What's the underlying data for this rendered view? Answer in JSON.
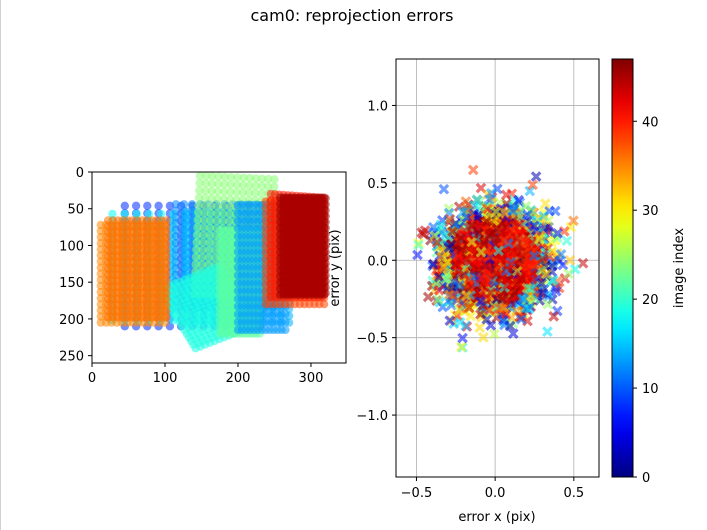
{
  "figure": {
    "title": "cam0: reprojection errors"
  },
  "chart_data": [
    {
      "type": "scatter",
      "name": "image-coverage",
      "title": "",
      "xlabel": "",
      "ylabel": "",
      "xlim": [
        0,
        348
      ],
      "ylim": [
        260,
        0
      ],
      "xticks": [
        0,
        100,
        200,
        300
      ],
      "yticks": [
        0,
        50,
        100,
        150,
        200,
        250
      ],
      "marker": "circle",
      "grid": false,
      "patches": [
        {
          "image_index": 8,
          "corners": [
            [
              45,
              46
            ],
            [
              230,
              46
            ],
            [
              230,
              210
            ],
            [
              45,
              210
            ]
          ]
        },
        {
          "image_index": 18,
          "corners": [
            [
              28,
              57
            ],
            [
              228,
              57
            ],
            [
              228,
              202
            ],
            [
              28,
              202
            ]
          ]
        },
        {
          "image_index": 12,
          "corners": [
            [
              115,
              44
            ],
            [
              248,
              44
            ],
            [
              248,
              184
            ],
            [
              115,
              184
            ]
          ]
        },
        {
          "image_index": 14,
          "corners": [
            [
              130,
              54
            ],
            [
              270,
              54
            ],
            [
              270,
              205
            ],
            [
              130,
              205
            ]
          ]
        },
        {
          "image_index": 24,
          "corners": [
            [
              148,
              5
            ],
            [
              250,
              10
            ],
            [
              245,
              170
            ],
            [
              140,
              166
            ]
          ]
        },
        {
          "image_index": 19,
          "corners": [
            [
              142,
              240
            ],
            [
              220,
              210
            ],
            [
              175,
              128
            ],
            [
              93,
              160
            ]
          ]
        },
        {
          "image_index": 22,
          "corners": [
            [
              175,
              80
            ],
            [
              230,
              80
            ],
            [
              230,
              220
            ],
            [
              175,
              220
            ]
          ]
        },
        {
          "image_index": 13,
          "corners": [
            [
              200,
              45
            ],
            [
              265,
              45
            ],
            [
              265,
              215
            ],
            [
              200,
              215
            ]
          ]
        },
        {
          "image_index": 35,
          "corners": [
            [
              12,
              72
            ],
            [
              100,
              72
            ],
            [
              100,
              205
            ],
            [
              12,
              205
            ]
          ]
        },
        {
          "image_index": 36,
          "corners": [
            [
              22,
              66
            ],
            [
              102,
              66
            ],
            [
              102,
              198
            ],
            [
              22,
              198
            ]
          ]
        },
        {
          "image_index": 38,
          "corners": [
            [
              238,
              40
            ],
            [
              318,
              40
            ],
            [
              318,
              180
            ],
            [
              238,
              180
            ]
          ]
        },
        {
          "image_index": 40,
          "corners": [
            [
              245,
              30
            ],
            [
              315,
              35
            ],
            [
              315,
              170
            ],
            [
              245,
              170
            ]
          ]
        },
        {
          "image_index": 46,
          "corners": [
            [
              258,
              35
            ],
            [
              318,
              35
            ],
            [
              318,
              167
            ],
            [
              258,
              167
            ]
          ]
        },
        {
          "image_index": 45,
          "corners": [
            [
              262,
              36
            ],
            [
              320,
              36
            ],
            [
              320,
              165
            ],
            [
              262,
              165
            ]
          ]
        }
      ]
    },
    {
      "type": "scatter",
      "name": "reprojection-errors",
      "title": "",
      "xlabel": "error x (pix)",
      "ylabel": "error y (pix)",
      "xlim": [
        -0.63,
        0.66
      ],
      "ylim": [
        -1.4,
        1.3
      ],
      "xticks": [
        -0.5,
        0.0,
        0.5
      ],
      "xtick_labels": [
        "−0.5",
        "0.0",
        "0.5"
      ],
      "yticks": [
        1.0,
        0.5,
        0.0,
        -0.5,
        -1.0
      ],
      "ytick_labels": [
        "1.0",
        "0.5",
        "0.0",
        "−0.5",
        "−1.0"
      ],
      "marker": "x",
      "grid": true,
      "point_cloud": {
        "center": [
          0.0,
          0.0
        ],
        "std_x": 0.16,
        "std_y": 0.16,
        "max_radius": 0.6,
        "count": 2600
      }
    }
  ],
  "colorbar": {
    "label": "image index",
    "range": [
      0,
      47
    ],
    "ticks": [
      0,
      10,
      20,
      30,
      40
    ],
    "colormap": "jet"
  }
}
